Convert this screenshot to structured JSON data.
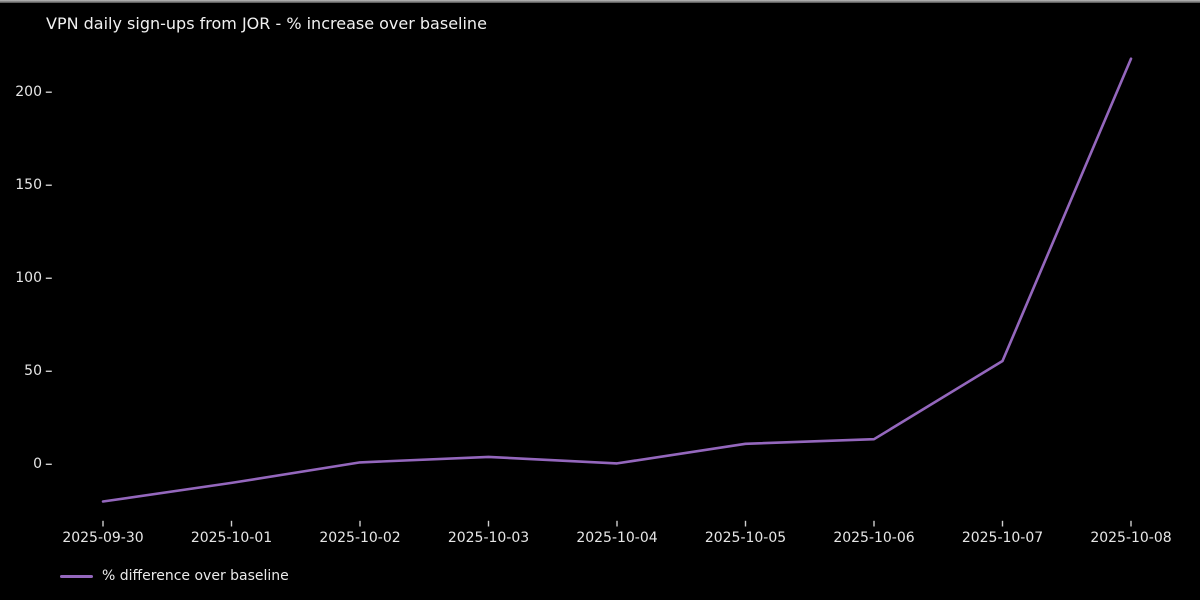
{
  "chart_data": {
    "type": "line",
    "title": "VPN daily sign-ups from JOR - % increase over baseline",
    "categories": [
      "2025-09-30",
      "2025-10-01",
      "2025-10-02",
      "2025-10-03",
      "2025-10-04",
      "2025-10-05",
      "2025-10-06",
      "2025-10-07",
      "2025-10-08"
    ],
    "series": [
      {
        "name": "% difference over baseline",
        "color": "#9467bd",
        "values": [
          -20,
          -10,
          1,
          4,
          0.5,
          11,
          13.5,
          55.5,
          218
        ]
      }
    ],
    "yticks": [
      0,
      50,
      100,
      150,
      200
    ],
    "ylim": [
      -30,
      228
    ],
    "xlabel": "",
    "ylabel": "",
    "legend_position": "lower-left",
    "grid": false,
    "colors": {
      "background": "#000000",
      "text": "#e8e8e8",
      "tick": "#cfcfcf",
      "window_edge": "#9a9a9a"
    }
  }
}
